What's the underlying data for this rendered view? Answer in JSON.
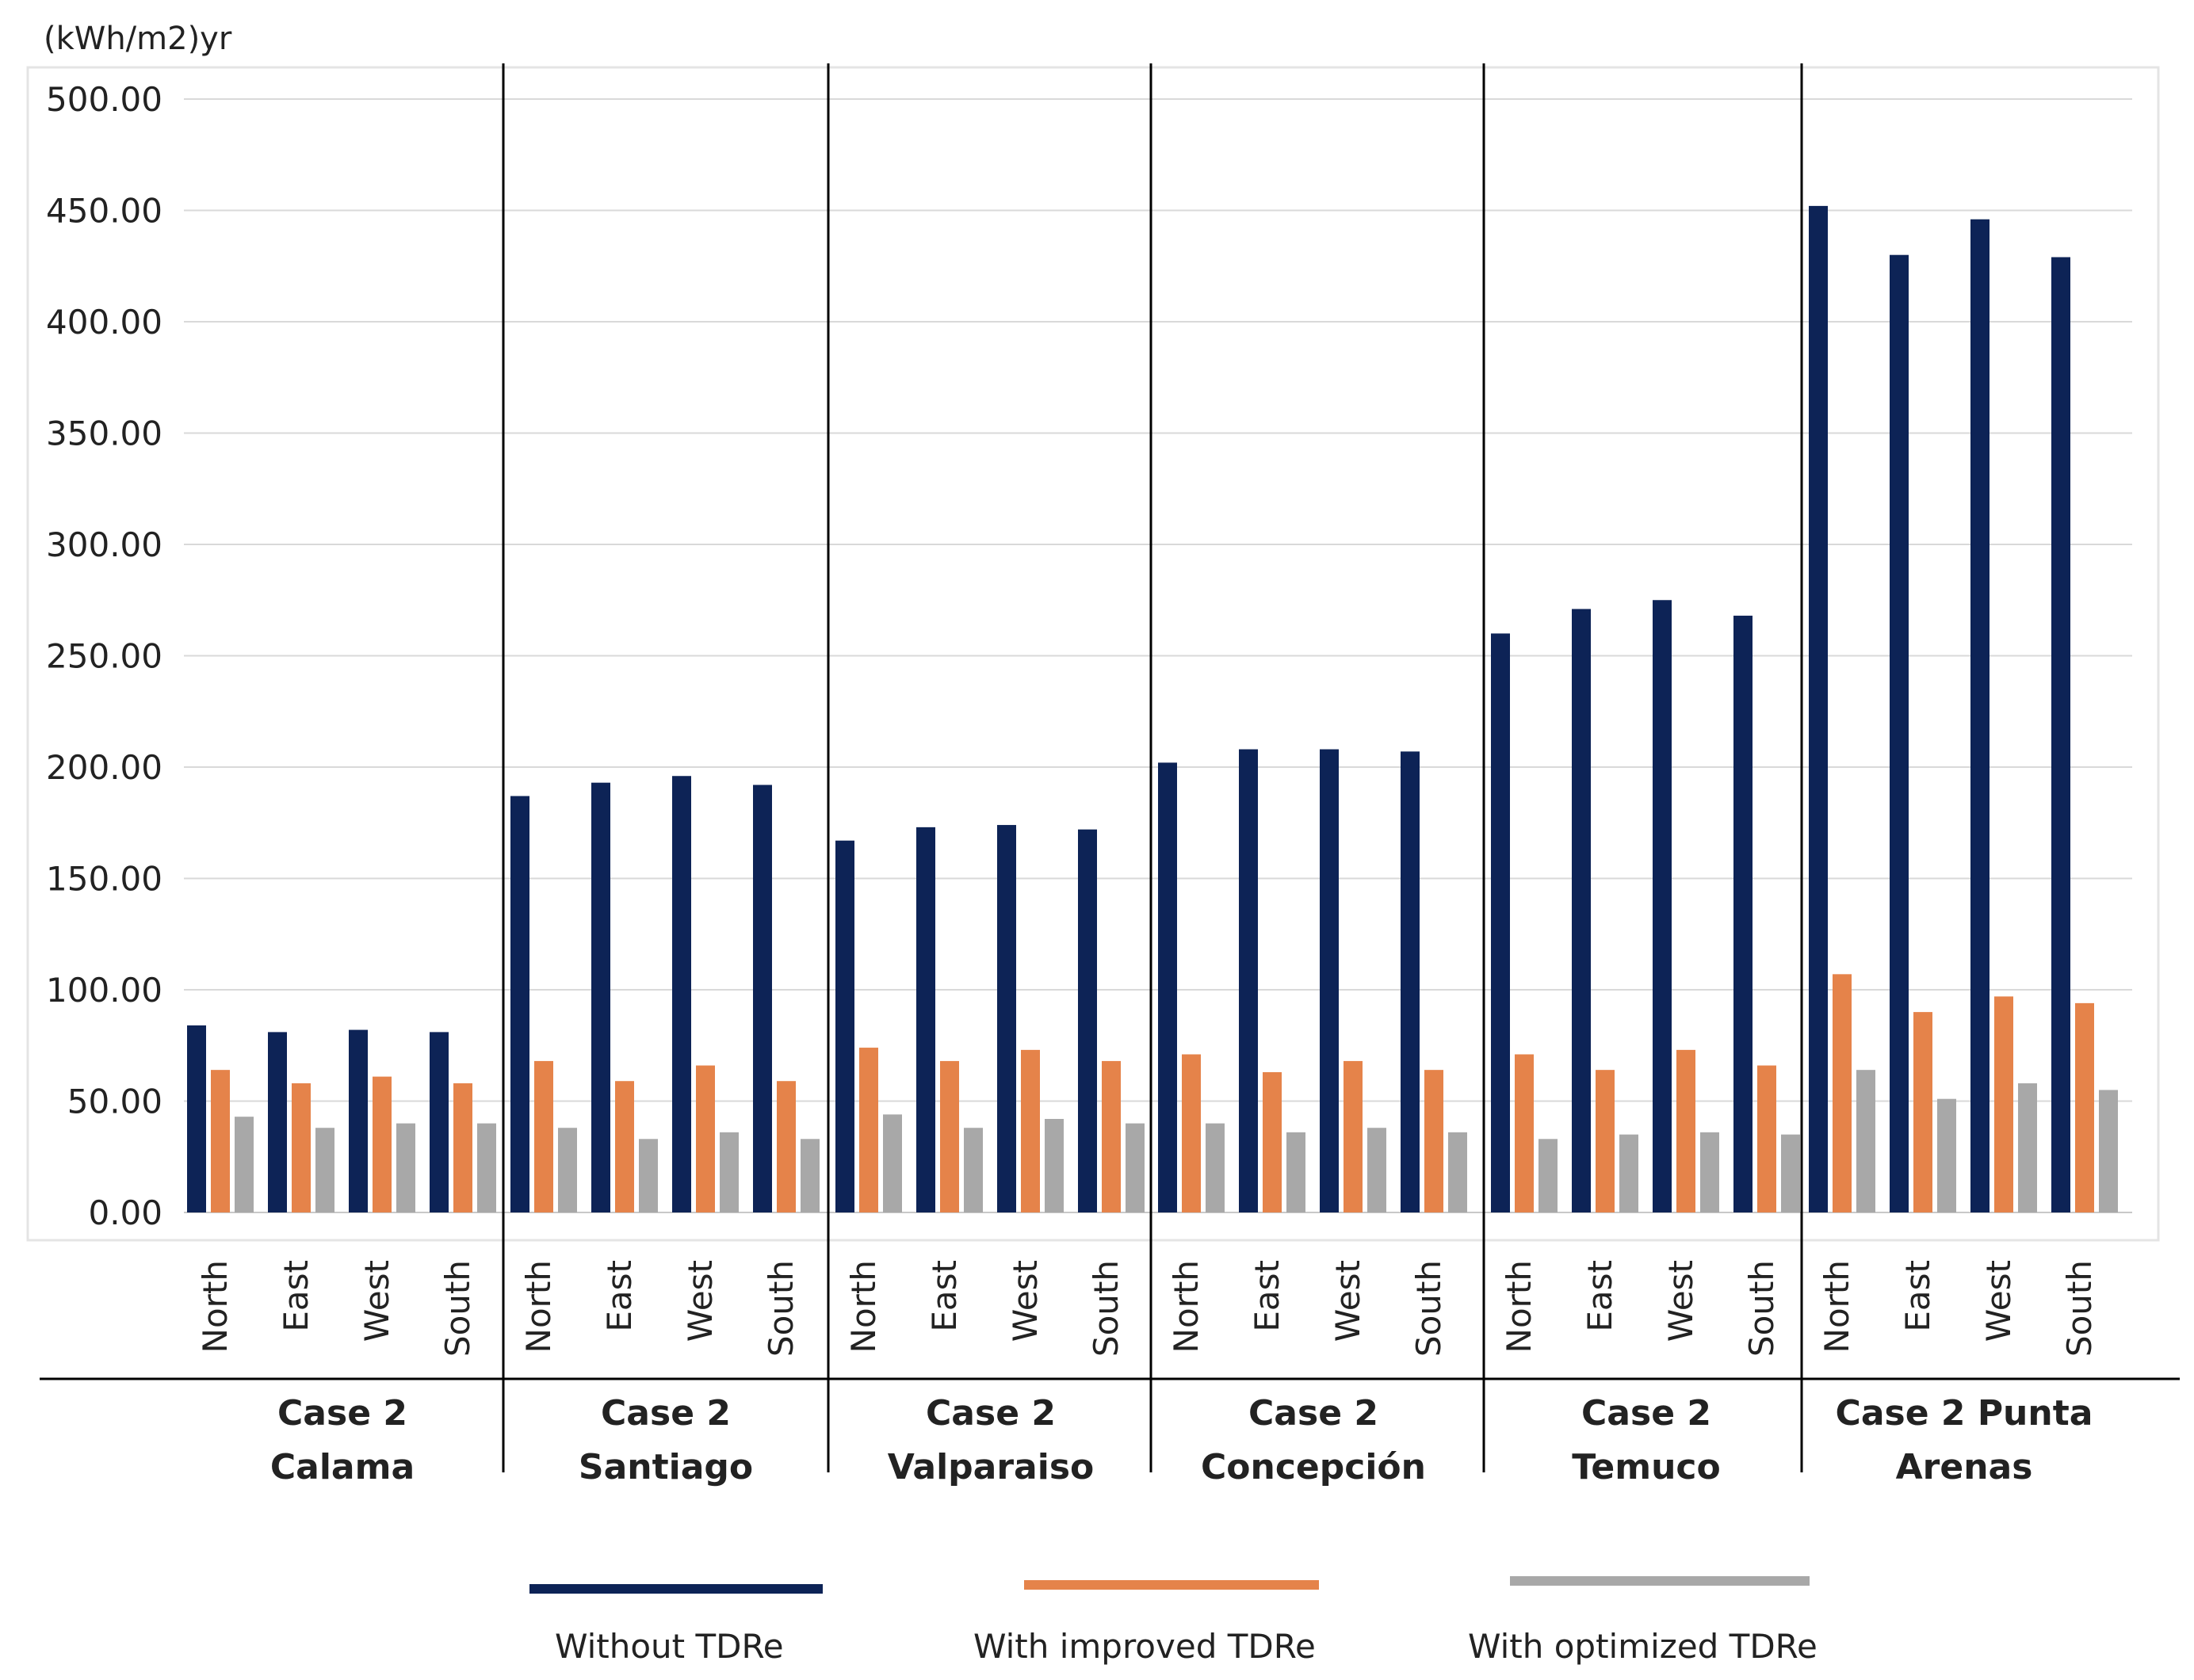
{
  "chart_data": {
    "type": "bar",
    "ylabel": "(kWh/m2)yr",
    "ylim": [
      0,
      500
    ],
    "yticks": [
      "0.00",
      "50.00",
      "100.00",
      "150.00",
      "200.00",
      "250.00",
      "300.00",
      "350.00",
      "400.00",
      "450.00",
      "500.00"
    ],
    "grid": true,
    "legend_position": "bottom",
    "groups": [
      {
        "label_lines": [
          "Case 2",
          "Calama"
        ],
        "categories": [
          "North",
          "East",
          "West",
          "South"
        ]
      },
      {
        "label_lines": [
          "Case 2",
          "Santiago"
        ],
        "categories": [
          "North",
          "East",
          "West",
          "South"
        ]
      },
      {
        "label_lines": [
          "Case 2",
          "Valparaiso"
        ],
        "categories": [
          "North",
          "East",
          "West",
          "South"
        ]
      },
      {
        "label_lines": [
          "Case 2",
          "Concepción"
        ],
        "categories": [
          "North",
          "East",
          "West",
          "South"
        ]
      },
      {
        "label_lines": [
          "Case 2",
          "Temuco"
        ],
        "categories": [
          "North",
          "East",
          "West",
          "South"
        ]
      },
      {
        "label_lines": [
          "Case 2 Punta",
          "Arenas"
        ],
        "categories": [
          "North",
          "East",
          "West",
          "South"
        ]
      }
    ],
    "series": [
      {
        "name": "Without TDRe",
        "color": "#0d2356",
        "values": [
          84,
          81,
          82,
          81,
          187,
          193,
          196,
          192,
          167,
          173,
          174,
          172,
          202,
          208,
          208,
          207,
          260,
          271,
          275,
          268,
          452,
          430,
          446,
          429
        ]
      },
      {
        "name": "With improved  TDRe",
        "color": "#e5834a",
        "values": [
          64,
          58,
          61,
          58,
          68,
          59,
          66,
          59,
          74,
          68,
          73,
          68,
          71,
          63,
          68,
          64,
          71,
          64,
          73,
          66,
          107,
          90,
          97,
          94
        ]
      },
      {
        "name": "With optimized TDRe",
        "color": "#a8a8a8",
        "values": [
          43,
          38,
          40,
          40,
          38,
          33,
          36,
          33,
          44,
          38,
          42,
          40,
          40,
          36,
          38,
          36,
          33,
          35,
          36,
          35,
          64,
          51,
          58,
          55
        ]
      }
    ]
  }
}
